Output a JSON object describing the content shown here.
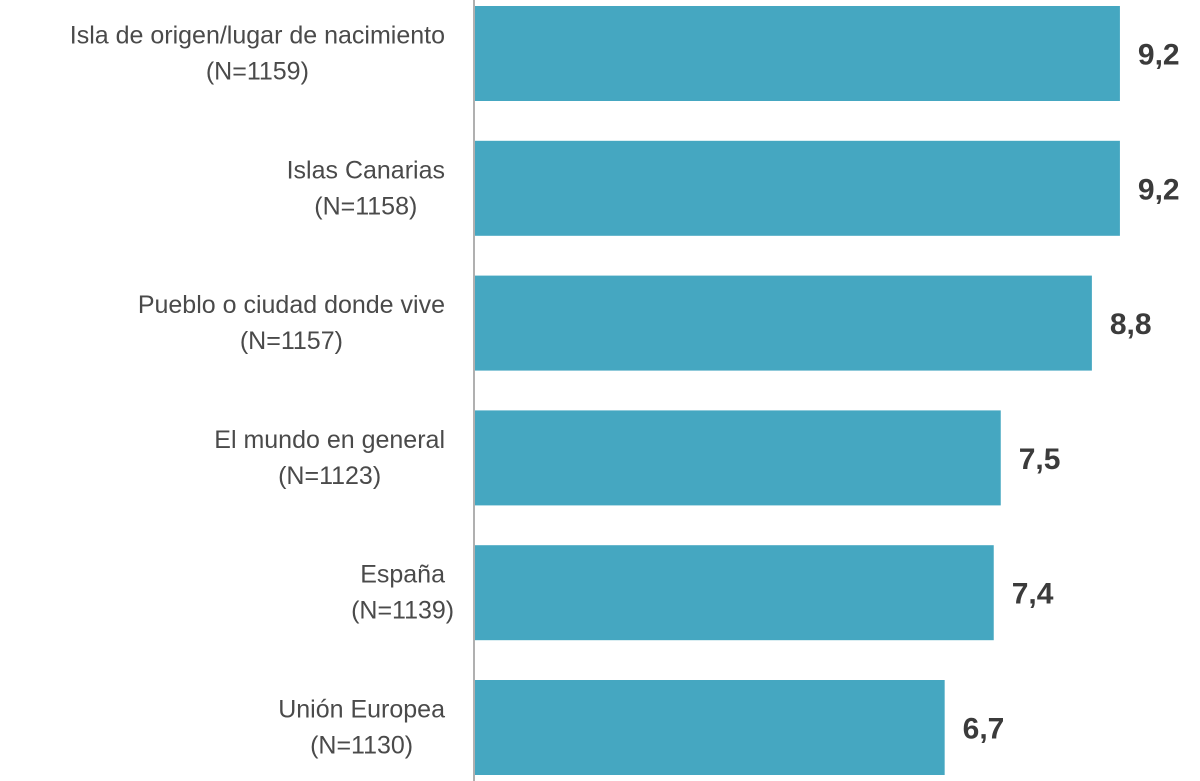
{
  "chart_data": {
    "type": "bar",
    "orientation": "horizontal",
    "categories": [
      "Isla de origen/lugar de nacimiento",
      "Islas Canarias",
      "Pueblo o ciudad donde vive",
      "El mundo en general",
      "España",
      "Unión Europea"
    ],
    "sample_sizes": [
      "(N=1159)",
      "(N=1158)",
      "(N=1157)",
      "(N=1123)",
      "(N=1139)",
      "(N=1130)"
    ],
    "values": [
      9.2,
      9.2,
      8.8,
      7.5,
      7.4,
      6.7
    ],
    "value_labels": [
      "9,2",
      "9,2",
      "8,8",
      "7,5",
      "7,4",
      "6,7"
    ],
    "xlim": [
      0,
      10
    ],
    "grid": false,
    "legend": "none",
    "colors": {
      "bar": "#45a7c1",
      "axis": "#b0b0b0",
      "category_text": "#4a4a4a",
      "value_text": "#3b3b3b"
    }
  }
}
